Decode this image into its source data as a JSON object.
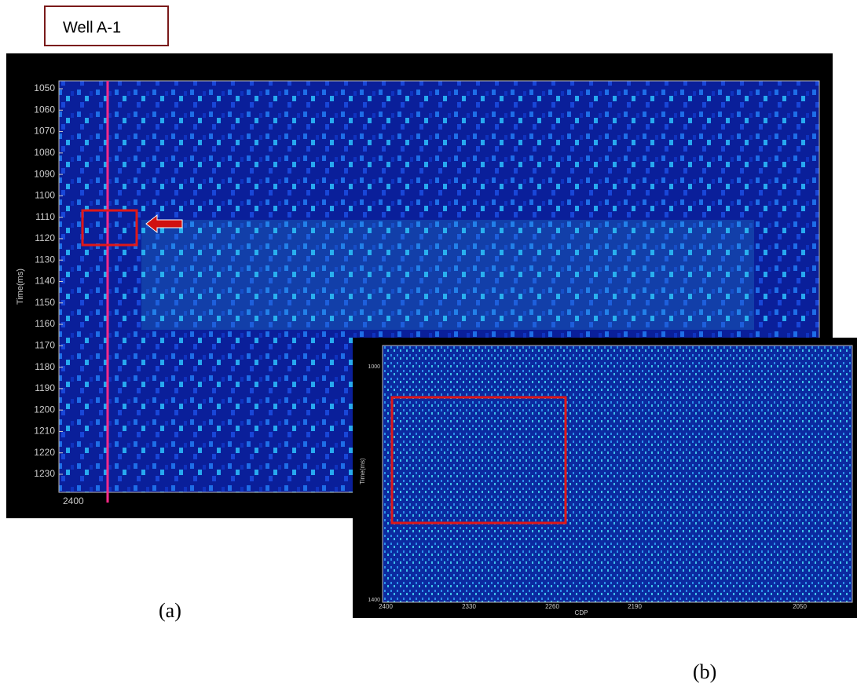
{
  "label_box": "Well A-1",
  "panel_a": {
    "ylabel": "Time(ms)",
    "yticks": [
      1050,
      1060,
      1070,
      1080,
      1090,
      1100,
      1110,
      1120,
      1130,
      1140,
      1150,
      1160,
      1170,
      1180,
      1190,
      1200,
      1210,
      1220,
      1230
    ],
    "xtick": "2400",
    "caption": "(a)"
  },
  "panel_b": {
    "ylabel": "Time(ms)",
    "xlabel": "CDP",
    "yticks": [
      1000,
      1400
    ],
    "xticks": [
      2400,
      2330,
      2260,
      2190,
      2050
    ],
    "caption": "(b)"
  }
}
